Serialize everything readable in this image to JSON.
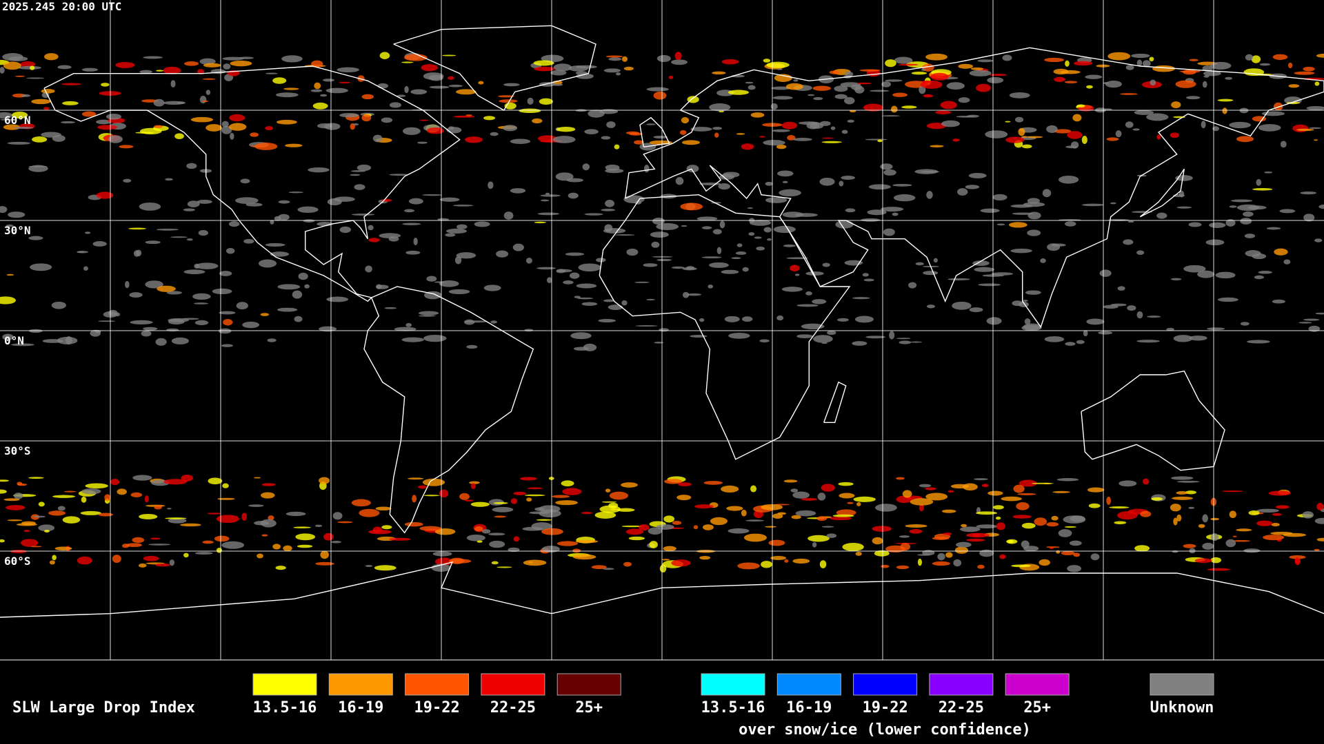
{
  "header": {
    "timestamp": "2025.245 20:00 UTC"
  },
  "map": {
    "lat_labels": [
      "60°N",
      "30°N",
      "0°N",
      "30°S",
      "60°S"
    ]
  },
  "legend": {
    "title": "SLW Large Drop Index",
    "items": [
      {
        "label": "13.5-16",
        "color": "#ffff00"
      },
      {
        "label": "16-19",
        "color": "#ff9900"
      },
      {
        "label": "19-22",
        "color": "#ff5500"
      },
      {
        "label": "22-25",
        "color": "#ee0000"
      },
      {
        "label": "25+",
        "color": "#660000"
      }
    ],
    "snow_items": [
      {
        "label": "13.5-16",
        "color": "#00ffff"
      },
      {
        "label": "16-19",
        "color": "#0088ff"
      },
      {
        "label": "19-22",
        "color": "#0000ff"
      },
      {
        "label": "22-25",
        "color": "#8800ff"
      },
      {
        "label": "25+",
        "color": "#cc00cc"
      }
    ],
    "snow_caption": "over snow/ice (lower confidence)",
    "unknown": {
      "label": "Unknown",
      "color": "#808080"
    }
  }
}
